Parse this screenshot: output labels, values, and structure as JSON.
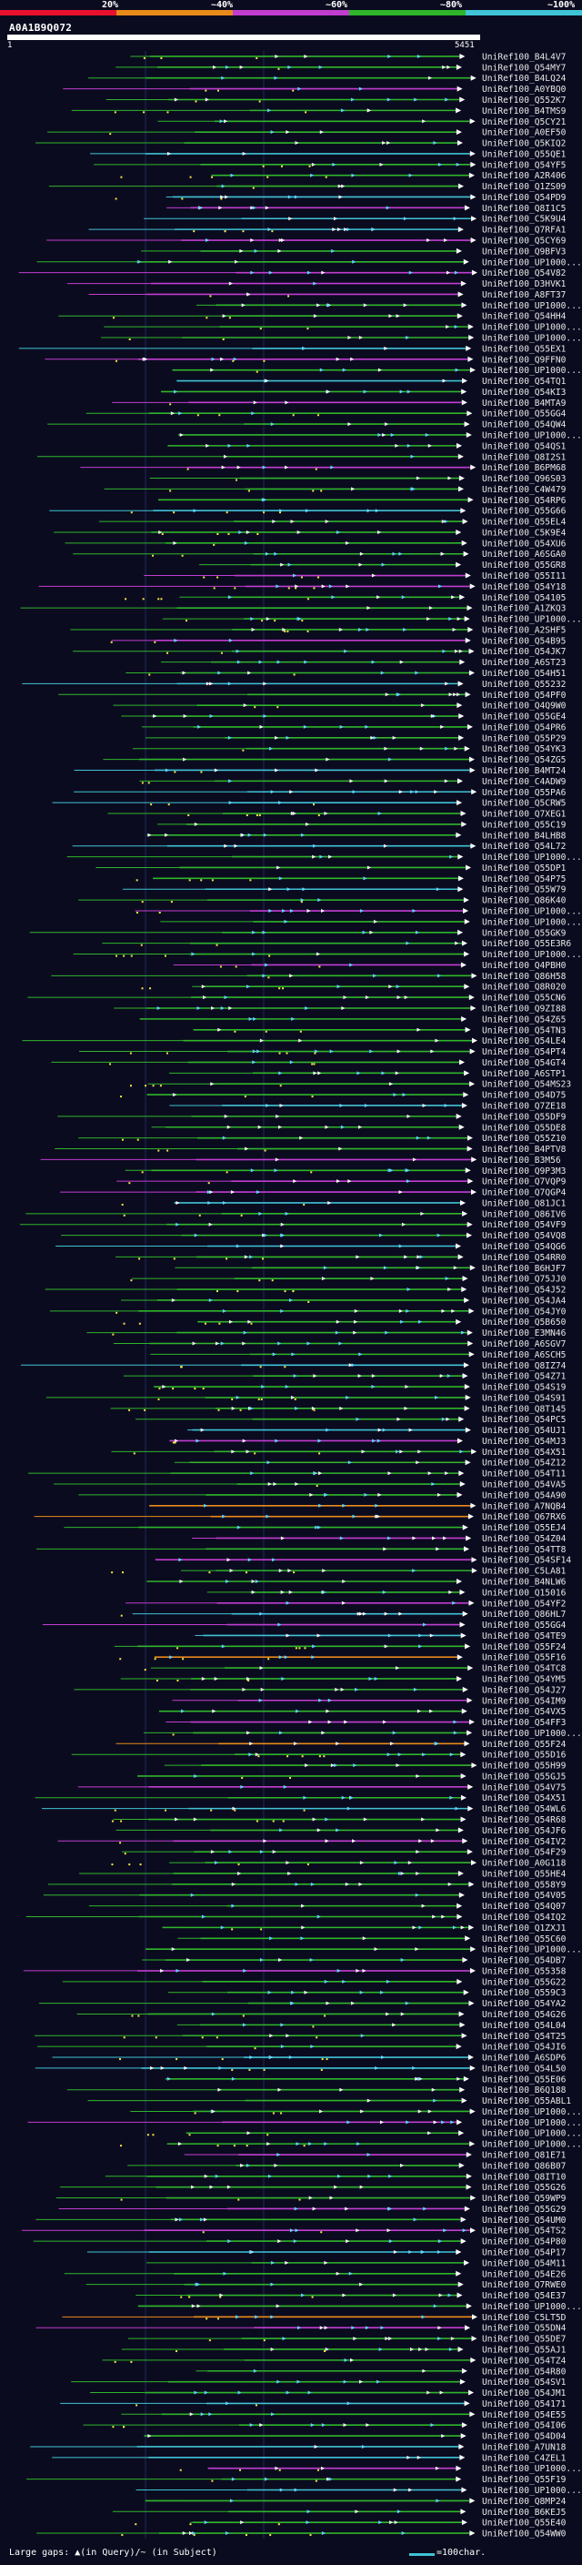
{
  "legend": {
    "labels": [
      "20%",
      "~40%",
      "~60%",
      "~80%",
      "~100%"
    ],
    "colors": [
      "#e8112d",
      "#e88a1a",
      "#c13dd0",
      "#2fb52a",
      "#3fc3d6"
    ]
  },
  "query": {
    "id": "A0A1B9Q072",
    "start": "1",
    "end": "5451"
  },
  "chart_data": {
    "type": "alignment-overview",
    "query_length": 5451,
    "hits": [
      "UniRef100_B4L4V7",
      "UniRef100_Q54MY7",
      "UniRef100_B4LQ24",
      "UniRef100_A0YBQ0",
      "UniRef100_Q552K7",
      "UniRef100_B4TMS9",
      "UniRef100_Q5CY21",
      "UniRef100_A0EF50",
      "UniRef100_Q5KIQ2",
      "UniRef100_Q55QE1",
      "UniRef100_Q54YF5",
      "UniRef100_A2R406",
      "UniRef100_Q1ZS09",
      "UniRef100_Q54PD9",
      "UniRef100_Q8I1C5",
      "UniRef100_C5K9U4",
      "UniRef100_Q7RFA1",
      "UniRef100_Q5CY69",
      "UniRef100_Q9BFV3",
      "UniRef100_UP1000...",
      "UniRef100_Q54V82",
      "UniRef100_D3HVK1",
      "UniRef100_A8FT37",
      "UniRef100_UP1000...",
      "UniRef100_Q54HH4",
      "UniRef100_UP1000...",
      "UniRef100_UP1000...",
      "UniRef100_Q55EX1",
      "UniRef100_Q9FFN0",
      "UniRef100_UP1000...",
      "UniRef100_Q54TQ1",
      "UniRef100_Q54KI3",
      "UniRef100_B4MTA9",
      "UniRef100_Q55GG4",
      "UniRef100_Q54QW4",
      "UniRef100_UP1000...",
      "UniRef100_Q54QS1",
      "UniRef100_Q8I2S1",
      "UniRef100_B6PM68",
      "UniRef100_Q96S03",
      "UniRef100_C4W479",
      "UniRef100_Q54RP6",
      "UniRef100_Q55G66",
      "UniRef100_Q55EL4",
      "UniRef100_C5K9E4",
      "UniRef100_Q54XU6",
      "UniRef100_A6SGA0",
      "UniRef100_Q55GR8",
      "UniRef100_Q55I11",
      "UniRef100_Q54Y18",
      "UniRef100_Q54105",
      "UniRef100_A1ZKQ3",
      "UniRef100_UP1000...",
      "UniRef100_A2SHF5",
      "UniRef100_Q54B95",
      "UniRef100_Q54JK7",
      "UniRef100_A6ST23",
      "UniRef100_Q54H51",
      "UniRef100_Q55232",
      "UniRef100_Q54PF0",
      "UniRef100_Q4Q9W0",
      "UniRef100_Q55GE4",
      "UniRef100_Q54PR6",
      "UniRef100_Q55P29",
      "UniRef100_Q54YK3",
      "UniRef100_Q54ZG5",
      "UniRef100_B4MT24",
      "UniRef100_C4ADW9",
      "UniRef100_Q55PA6",
      "UniRef100_Q5CRW5",
      "UniRef100_Q7XEG1",
      "UniRef100_Q55C19",
      "UniRef100_B4LHB8",
      "UniRef100_Q54L72",
      "UniRef100_UP1000...",
      "UniRef100_Q55DP1",
      "UniRef100_Q54P75",
      "UniRef100_Q55W79",
      "UniRef100_Q86K40",
      "UniRef100_UP1000...",
      "UniRef100_UP1000...",
      "UniRef100_Q55GK9",
      "UniRef100_Q55E3R6",
      "UniRef100_UP1000...",
      "UniRef100_Q4PBH0",
      "UniRef100_Q86H58",
      "UniRef100_Q8R020",
      "UniRef100_Q55CN6",
      "UniRef100_Q9ZI88",
      "UniRef100_Q54Z65",
      "UniRef100_Q54TN3",
      "UniRef100_Q54LE4",
      "UniRef100_Q54PT4",
      "UniRef100_Q54GT4",
      "UniRef100_A6STP1",
      "UniRef100_Q54MS23",
      "UniRef100_Q54D75",
      "UniRef100_Q7ZE18",
      "UniRef100_Q55DF9",
      "UniRef100_Q55DE8",
      "UniRef100_Q55Z10",
      "UniRef100_B4PTV8",
      "UniRef100_B3M56",
      "UniRef100_Q9P3M3",
      "UniRef100_Q7VQP9",
      "UniRef100_Q7QGP4",
      "UniRef100_Q81JC1",
      "UniRef100_Q86IV6",
      "UniRef100_Q54VF9",
      "UniRef100_Q54VQ8",
      "UniRef100_Q54QG6",
      "UniRef100_Q54RR0",
      "UniRef100_B6HJF7",
      "UniRef100_Q75JJ0",
      "UniRef100_Q54J52",
      "UniRef100_Q54JA4",
      "UniRef100_Q54JY0",
      "UniRef100_Q5B650",
      "UniRef100_E3MN46",
      "UniRef100_A6SGV7",
      "UniRef100_A6SCH5",
      "UniRef100_Q8IZ74",
      "UniRef100_Q54Z71",
      "UniRef100_Q54S19",
      "UniRef100_Q54S91",
      "UniRef100_Q8T145",
      "UniRef100_Q54PC5",
      "UniRef100_Q54UJ1",
      "UniRef100_Q54MJ3",
      "UniRef100_Q54X51",
      "UniRef100_Q54Z12",
      "UniRef100_Q54T11",
      "UniRef100_Q54VA5",
      "UniRef100_Q54A90",
      "UniRef100_A7NQB4",
      "UniRef100_Q67RX6",
      "UniRef100_Q55EJ4",
      "UniRef100_Q54Z04",
      "UniRef100_Q54TT8",
      "UniRef100_Q54SF14",
      "UniRef100_C5LA81",
      "UniRef100_B4NLW6",
      "UniRef100_Q15016",
      "UniRef100_Q54YF2",
      "UniRef100_Q86HL7",
      "UniRef100_Q55GG4",
      "UniRef100_Q54TE9",
      "UniRef100_Q55F24",
      "UniRef100_Q55F16",
      "UniRef100_Q54TC8",
      "UniRef100_Q54YM5",
      "UniRef100_Q54J27",
      "UniRef100_Q54IM9",
      "UniRef100_Q54VX5",
      "UniRef100_Q54FF3",
      "UniRef100_UP1000...",
      "UniRef100_Q55F24",
      "UniRef100_Q55D16",
      "UniRef100_Q55H99",
      "UniRef100_Q55GJ5",
      "UniRef100_Q54V75",
      "UniRef100_Q54X51",
      "UniRef100_Q54WL6",
      "UniRef100_Q54R68",
      "UniRef100_Q54JF6",
      "UniRef100_Q54IV2",
      "UniRef100_Q54F29",
      "UniRef100_A0G118",
      "UniRef100_Q55HE4",
      "UniRef100_Q558Y9",
      "UniRef100_Q54V05",
      "UniRef100_Q54Q07",
      "UniRef100_Q54IQ2",
      "UniRef100_Q1ZXJ1",
      "UniRef100_Q55C60",
      "UniRef100_UP1000...",
      "UniRef100_Q54DB7",
      "UniRef100_Q55358",
      "UniRef100_Q55G22",
      "UniRef100_Q559C3",
      "UniRef100_Q54YA2",
      "UniRef100_Q54G26",
      "UniRef100_Q54L04",
      "UniRef100_Q54T25",
      "UniRef100_Q54JI6",
      "UniRef100_A6SDP6",
      "UniRef100_Q54L50",
      "UniRef100_Q55E06",
      "UniRef100_B6Q188",
      "UniRef100_Q55ABL1",
      "UniRef100_UP1000...",
      "UniRef100_UP1000...",
      "UniRef100_UP1000...",
      "UniRef100_UP1000...",
      "UniRef100_Q81E71",
      "UniRef100_Q86B07",
      "UniRef100_Q8IT10",
      "UniRef100_Q55G26",
      "UniRef100_Q59WP9",
      "UniRef100_Q55G29",
      "UniRef100_Q54UM0",
      "UniRef100_Q54TS2",
      "UniRef100_Q54P80",
      "UniRef100_Q54P17",
      "UniRef100_Q54M11",
      "UniRef100_Q54E26",
      "UniRef100_Q7RWE0",
      "UniRef100_Q54E37",
      "UniRef100_UP1000...",
      "UniRef100_C5LT5D",
      "UniRef100_Q55DN4",
      "UniRef100_Q55DE7",
      "UniRef100_Q55AJ1",
      "UniRef100_Q54TZ4",
      "UniRef100_Q54R80",
      "UniRef100_Q54SV1",
      "UniRef100_Q54JM1",
      "UniRef100_Q54171",
      "UniRef100_Q54E55",
      "UniRef100_Q54I06",
      "UniRef100_Q54D04",
      "UniRef100_A7UN18",
      "UniRef100_C4ZEL1",
      "UniRef100_UP1000...",
      "UniRef100_Q55F19",
      "UniRef100_UP1000...",
      "UniRef100_Q8MP24",
      "UniRef100_B6KEJ5",
      "UniRef100_Q55E40",
      "UniRef100_Q54WW0"
    ]
  },
  "footer": {
    "gaps_text": "Large gaps: ▲(in Query)/~ (in Subject)",
    "scale_text": "=100char."
  }
}
